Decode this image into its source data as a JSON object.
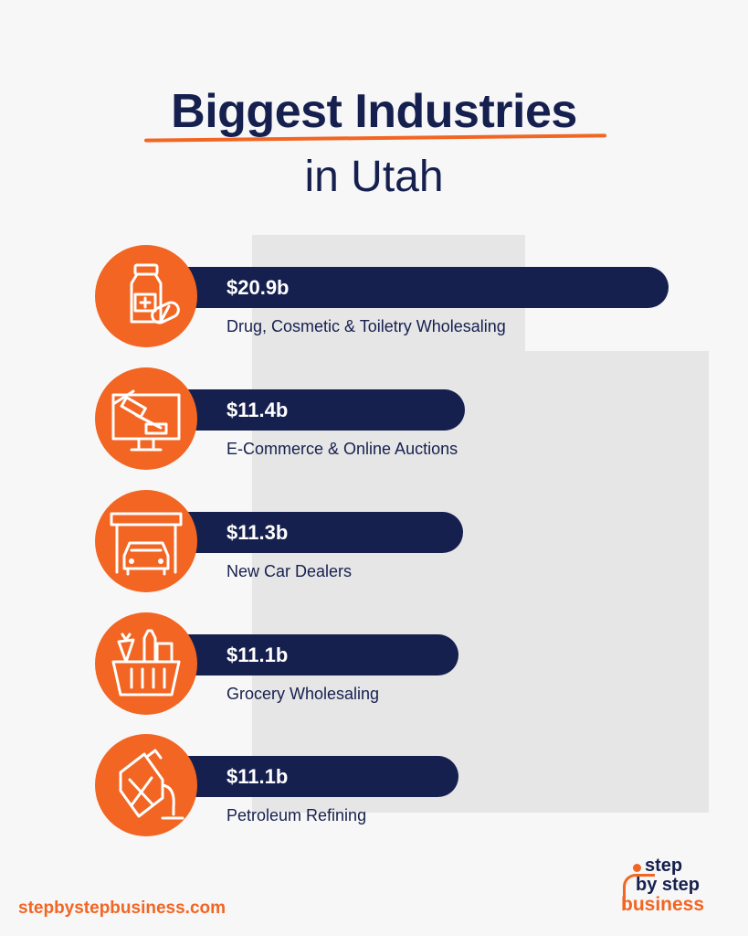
{
  "title_line1": "Biggest Industries",
  "title_line2": "in Utah",
  "colors": {
    "accent": "#f26522",
    "navy": "#16204f",
    "background": "#f7f7f7",
    "map": "#e6e6e6"
  },
  "chart_data": {
    "type": "bar",
    "orientation": "horizontal",
    "title": "Biggest Industries in Utah",
    "unit": "$ billions",
    "categories": [
      "Drug, Cosmetic & Toiletry Wholesaling",
      "E-Commerce & Online Auctions",
      "New Car Dealers",
      "Grocery Wholesaling",
      "Petroleum Refining"
    ],
    "values": [
      20.9,
      11.4,
      11.3,
      11.1,
      11.1
    ],
    "value_labels": [
      "$20.9b",
      "$11.4b",
      "$11.3b",
      "$11.1b",
      "$11.1b"
    ],
    "icons": [
      "medicine-bottle-pills-icon",
      "auction-gavel-monitor-icon",
      "car-garage-icon",
      "grocery-basket-icon",
      "fuel-can-icon"
    ]
  },
  "footer": {
    "url": "stepbystepbusiness.com",
    "logo_line1": "step",
    "logo_line2": "by step",
    "logo_line3": "business"
  }
}
